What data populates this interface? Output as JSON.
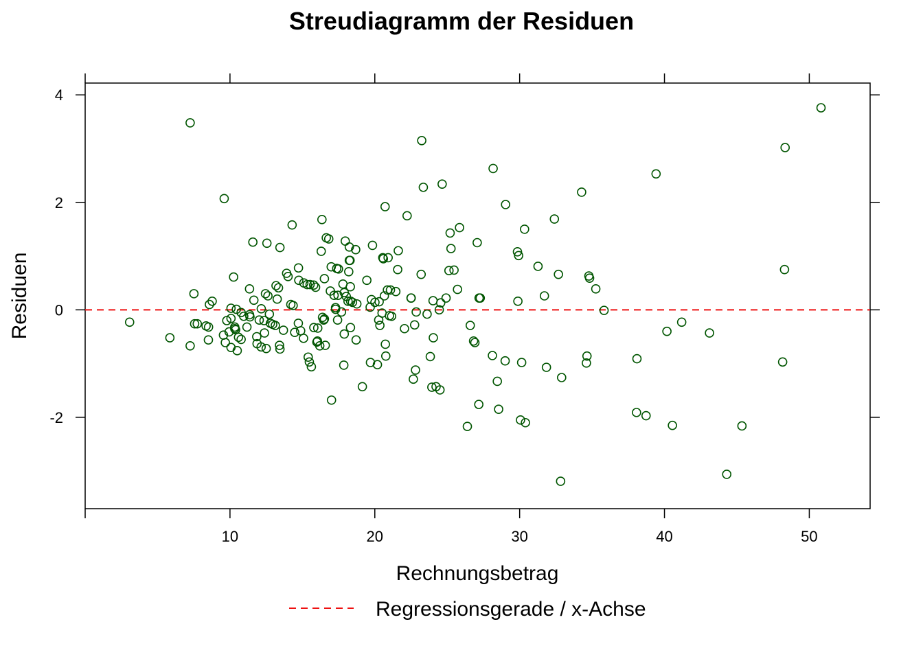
{
  "chart_data": {
    "type": "scatter",
    "title": "Streudiagramm der Residuen",
    "xlabel": "Rechnungsbetrag",
    "ylabel": "Residuen",
    "xlim": [
      0.0,
      54.2
    ],
    "ylim": [
      -3.7,
      4.22
    ],
    "xticks": [
      10,
      20,
      30,
      40,
      50
    ],
    "yticks": [
      -2,
      0,
      2,
      4
    ],
    "ytick_labels": [
      "-2",
      "0",
      "2",
      "4"
    ],
    "grid": false,
    "legend": {
      "position": "bottom",
      "entries": [
        {
          "label": "Regressionsgerade / x-Achse",
          "style": "dashed-line",
          "color": "#ee1111"
        }
      ]
    },
    "reference_line": {
      "y": 0,
      "style": "dashed",
      "color": "#ee1111"
    },
    "series": [
      {
        "color": "#005500",
        "marker": "open-circle",
        "points": [
          [
            3.07,
            -0.23
          ],
          [
            5.85,
            -0.52
          ],
          [
            7.25,
            3.48
          ],
          [
            7.25,
            -0.67
          ],
          [
            7.51,
            0.3
          ],
          [
            7.56,
            -0.26
          ],
          [
            7.74,
            -0.26
          ],
          [
            8.35,
            -0.3
          ],
          [
            8.51,
            -0.56
          ],
          [
            8.52,
            -0.32
          ],
          [
            8.58,
            0.1
          ],
          [
            8.77,
            0.16
          ],
          [
            9.55,
            -0.47
          ],
          [
            9.6,
            2.07
          ],
          [
            9.68,
            -0.61
          ],
          [
            9.78,
            -0.2
          ],
          [
            9.94,
            -0.41
          ],
          [
            10.07,
            -0.16
          ],
          [
            10.07,
            0.03
          ],
          [
            10.07,
            -0.7
          ],
          [
            10.25,
            0.61
          ],
          [
            10.33,
            -0.35
          ],
          [
            10.33,
            -0.32
          ],
          [
            10.39,
            -0.37
          ],
          [
            10.44,
            0.01
          ],
          [
            10.5,
            -0.76
          ],
          [
            10.59,
            -0.51
          ],
          [
            10.77,
            -0.55
          ],
          [
            10.77,
            -0.05
          ],
          [
            10.95,
            -0.12
          ],
          [
            11.17,
            -0.32
          ],
          [
            11.35,
            0.39
          ],
          [
            11.35,
            -0.09
          ],
          [
            11.38,
            -0.13
          ],
          [
            11.58,
            1.26
          ],
          [
            11.65,
            0.18
          ],
          [
            11.85,
            -0.5
          ],
          [
            11.87,
            -0.63
          ],
          [
            12.02,
            -0.19
          ],
          [
            12.15,
            -0.69
          ],
          [
            12.16,
            0.02
          ],
          [
            12.35,
            -0.2
          ],
          [
            12.38,
            -0.43
          ],
          [
            12.45,
            0.3
          ],
          [
            12.5,
            -0.72
          ],
          [
            12.55,
            1.24
          ],
          [
            12.62,
            0.26
          ],
          [
            12.72,
            -0.08
          ],
          [
            12.79,
            -0.25
          ],
          [
            12.95,
            -0.27
          ],
          [
            13.13,
            -0.29
          ],
          [
            13.18,
            0.45
          ],
          [
            13.26,
            0.2
          ],
          [
            13.35,
            0.41
          ],
          [
            13.42,
            -0.66
          ],
          [
            13.45,
            -0.73
          ],
          [
            13.45,
            1.16
          ],
          [
            13.69,
            -0.38
          ],
          [
            13.91,
            0.68
          ],
          [
            14.01,
            0.62
          ],
          [
            14.2,
            0.1
          ],
          [
            14.29,
            1.58
          ],
          [
            14.36,
            0.08
          ],
          [
            14.47,
            -0.42
          ],
          [
            14.72,
            -0.25
          ],
          [
            14.73,
            0.78
          ],
          [
            14.75,
            0.55
          ],
          [
            14.88,
            -0.39
          ],
          [
            15.08,
            -0.53
          ],
          [
            15.1,
            0.5
          ],
          [
            15.33,
            0.47
          ],
          [
            15.4,
            -0.88
          ],
          [
            15.48,
            -0.97
          ],
          [
            15.53,
            0.47
          ],
          [
            15.62,
            -1.06
          ],
          [
            15.78,
            0.46
          ],
          [
            15.79,
            -0.33
          ],
          [
            15.91,
            0.42
          ],
          [
            16.0,
            -0.6
          ],
          [
            16.04,
            -0.58
          ],
          [
            16.06,
            -0.34
          ],
          [
            16.2,
            -0.67
          ],
          [
            16.3,
            1.09
          ],
          [
            16.35,
            1.68
          ],
          [
            16.39,
            -0.14
          ],
          [
            16.47,
            -0.19
          ],
          [
            16.52,
            -0.17
          ],
          [
            16.52,
            0.58
          ],
          [
            16.58,
            -0.66
          ],
          [
            16.65,
            1.34
          ],
          [
            16.82,
            1.32
          ],
          [
            16.93,
            0.35
          ],
          [
            16.99,
            0.8
          ],
          [
            17.01,
            -1.68
          ],
          [
            17.19,
            0.27
          ],
          [
            17.29,
            0.04
          ],
          [
            17.29,
            0.01
          ],
          [
            17.37,
            0.77
          ],
          [
            17.43,
            -0.19
          ],
          [
            17.46,
            0.27
          ],
          [
            17.49,
            0.76
          ],
          [
            17.7,
            -0.04
          ],
          [
            17.8,
            0.48
          ],
          [
            17.86,
            -1.03
          ],
          [
            17.89,
            -0.45
          ],
          [
            17.89,
            0.32
          ],
          [
            17.96,
            1.28
          ],
          [
            18.03,
            0.25
          ],
          [
            18.15,
            0.16
          ],
          [
            18.2,
            0.71
          ],
          [
            18.24,
            0.92
          ],
          [
            18.24,
            1.17
          ],
          [
            18.29,
            0.92
          ],
          [
            18.31,
            0.43
          ],
          [
            18.32,
            -0.33
          ],
          [
            18.33,
            0.16
          ],
          [
            18.46,
            0.14
          ],
          [
            18.68,
            1.12
          ],
          [
            18.71,
            -0.56
          ],
          [
            18.76,
            0.11
          ],
          [
            19.14,
            -1.43
          ],
          [
            19.45,
            0.55
          ],
          [
            19.68,
            0.05
          ],
          [
            19.7,
            -0.98
          ],
          [
            19.77,
            0.19
          ],
          [
            19.84,
            1.2
          ],
          [
            20.01,
            0.14
          ],
          [
            20.18,
            -1.02
          ],
          [
            20.27,
            -0.19
          ],
          [
            20.3,
            0.15
          ],
          [
            20.35,
            -0.29
          ],
          [
            20.5,
            -0.06
          ],
          [
            20.55,
            0.97
          ],
          [
            20.59,
            0.95
          ],
          [
            20.66,
            0.26
          ],
          [
            20.71,
            1.92
          ],
          [
            20.73,
            -0.64
          ],
          [
            20.76,
            -0.86
          ],
          [
            20.87,
            0.37
          ],
          [
            20.92,
            0.97
          ],
          [
            21.01,
            -0.11
          ],
          [
            21.08,
            0.37
          ],
          [
            21.16,
            -0.12
          ],
          [
            21.45,
            0.34
          ],
          [
            21.58,
            0.75
          ],
          [
            21.62,
            1.1
          ],
          [
            22.05,
            -0.35
          ],
          [
            22.23,
            1.75
          ],
          [
            22.5,
            0.22
          ],
          [
            22.51,
            0.22
          ],
          [
            22.66,
            -1.29
          ],
          [
            22.75,
            -0.28
          ],
          [
            22.81,
            -1.12
          ],
          [
            22.86,
            -0.04
          ],
          [
            23.2,
            0.66
          ],
          [
            23.24,
            3.15
          ],
          [
            23.35,
            2.28
          ],
          [
            23.61,
            -0.08
          ],
          [
            23.83,
            -0.87
          ],
          [
            23.94,
            -1.44
          ],
          [
            24.02,
            0.17
          ],
          [
            24.04,
            -0.52
          ],
          [
            24.23,
            -1.43
          ],
          [
            24.45,
            0.0
          ],
          [
            24.5,
            -1.49
          ],
          [
            24.55,
            0.13
          ],
          [
            24.65,
            2.34
          ],
          [
            24.92,
            0.22
          ],
          [
            25.12,
            0.73
          ],
          [
            25.2,
            1.43
          ],
          [
            25.26,
            1.14
          ],
          [
            25.47,
            0.74
          ],
          [
            25.71,
            0.38
          ],
          [
            25.85,
            1.53
          ],
          [
            26.39,
            -2.17
          ],
          [
            26.59,
            -0.29
          ],
          [
            26.82,
            -0.58
          ],
          [
            26.91,
            -0.61
          ],
          [
            27.07,
            1.25
          ],
          [
            27.18,
            -1.76
          ],
          [
            27.2,
            0.22
          ],
          [
            27.28,
            0.22
          ],
          [
            28.12,
            -0.85
          ],
          [
            28.17,
            2.63
          ],
          [
            28.46,
            -1.33
          ],
          [
            28.55,
            -1.85
          ],
          [
            29.0,
            -0.95
          ],
          [
            29.03,
            1.96
          ],
          [
            29.85,
            1.08
          ],
          [
            29.88,
            0.16
          ],
          [
            29.93,
            1.01
          ],
          [
            30.06,
            -2.05
          ],
          [
            30.14,
            -0.98
          ],
          [
            30.34,
            1.5
          ],
          [
            30.4,
            -2.1
          ],
          [
            31.27,
            0.81
          ],
          [
            31.71,
            0.26
          ],
          [
            31.85,
            -1.07
          ],
          [
            32.4,
            1.69
          ],
          [
            32.68,
            0.66
          ],
          [
            32.83,
            -3.19
          ],
          [
            32.9,
            -1.26
          ],
          [
            34.28,
            2.19
          ],
          [
            34.61,
            -0.99
          ],
          [
            34.65,
            -0.86
          ],
          [
            34.78,
            0.63
          ],
          [
            34.83,
            0.59
          ],
          [
            35.26,
            0.39
          ],
          [
            35.83,
            -0.01
          ],
          [
            38.07,
            -1.91
          ],
          [
            38.1,
            -0.91
          ],
          [
            38.73,
            -1.97
          ],
          [
            39.42,
            2.53
          ],
          [
            40.17,
            -0.4
          ],
          [
            40.55,
            -2.15
          ],
          [
            41.19,
            -0.23
          ],
          [
            43.11,
            -0.43
          ],
          [
            44.3,
            -3.06
          ],
          [
            45.35,
            -2.16
          ],
          [
            48.16,
            -0.97
          ],
          [
            48.29,
            0.75
          ],
          [
            48.33,
            3.02
          ],
          [
            50.81,
            3.76
          ]
        ]
      }
    ]
  }
}
